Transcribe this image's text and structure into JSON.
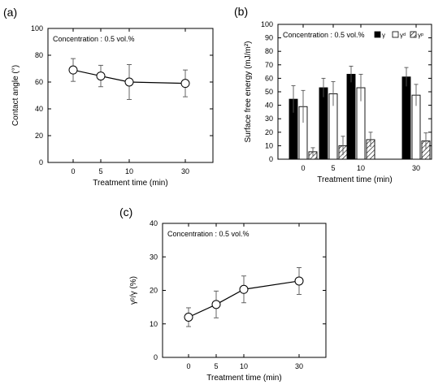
{
  "chart_data": [
    {
      "panel_label": "(a)",
      "type": "line",
      "annotation": "Concentration : 0.5 vol.%",
      "xlabel": "Treatment time (min)",
      "ylabel": "Contact angle (°)",
      "x": [
        0,
        5,
        10,
        30
      ],
      "x_tick_labels": [
        "0",
        "5",
        "10",
        "30"
      ],
      "values": [
        69,
        64.5,
        60,
        59
      ],
      "errors": [
        8.5,
        8,
        13,
        10
      ],
      "ylim": [
        0,
        100
      ],
      "y_ticks": [
        "0",
        "20",
        "40",
        "60",
        "80",
        "100"
      ]
    },
    {
      "panel_label": "(b)",
      "type": "bar",
      "annotation": "Concentration : 0.5 vol.%",
      "xlabel": "Treatment time (min)",
      "ylabel": "Surface free energy (mJ/m²)",
      "categories": [
        "0",
        "5",
        "10",
        "30"
      ],
      "ylim": [
        0,
        100
      ],
      "y_ticks": [
        "0",
        "10",
        "20",
        "30",
        "40",
        "50",
        "60",
        "70",
        "80",
        "90",
        "100"
      ],
      "legend_position": "top-right",
      "series": [
        {
          "name": "γ",
          "fill": "#000000",
          "values": [
            44.5,
            53,
            63,
            61
          ],
          "errors": [
            10,
            7,
            6,
            7
          ]
        },
        {
          "name": "γᵈ",
          "fill": "#ffffff",
          "values": [
            39,
            48.5,
            53,
            47.5
          ],
          "errors": [
            12,
            9,
            10,
            8
          ]
        },
        {
          "name": "γᵖ",
          "fill": "hatch",
          "values": [
            5.5,
            10,
            14.5,
            13.5
          ],
          "errors": [
            3,
            7,
            5.5,
            6
          ]
        }
      ]
    },
    {
      "panel_label": "(c)",
      "type": "line",
      "annotation": "Concentration : 0.5 vol.%",
      "xlabel": "Treatment time (min)",
      "ylabel": "γᵖ/γ (%)",
      "x": [
        0,
        5,
        10,
        30
      ],
      "x_tick_labels": [
        "0",
        "5",
        "10",
        "30"
      ],
      "values": [
        12,
        15.8,
        20.3,
        22.8
      ],
      "errors": [
        2.8,
        4,
        4,
        4
      ],
      "ylim": [
        0,
        40
      ],
      "y_ticks": [
        "0",
        "10",
        "20",
        "30",
        "40"
      ]
    }
  ]
}
